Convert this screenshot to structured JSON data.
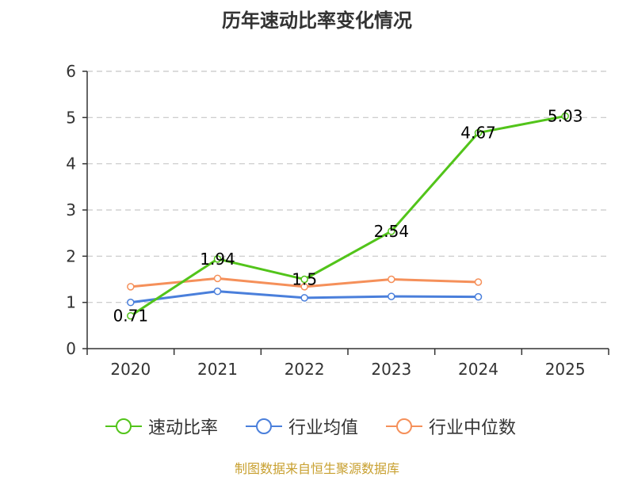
{
  "chart_data": {
    "type": "line",
    "title": "历年速动比率变化情况",
    "categories": [
      "2020",
      "2021",
      "2022",
      "2023",
      "2024",
      "2025"
    ],
    "ylim": [
      0,
      6
    ],
    "yticks": [
      "0",
      "1",
      "2",
      "3",
      "4",
      "5",
      "6"
    ],
    "grid": true,
    "legend_position": "bottom",
    "series": [
      {
        "name": "速动比率",
        "color": "#52c41a",
        "values": [
          0.71,
          1.94,
          1.5,
          2.54,
          4.67,
          5.03
        ],
        "labels": [
          "0.71",
          "1.94",
          "1.5",
          "2.54",
          "4.67",
          "5.03"
        ]
      },
      {
        "name": "行业均值",
        "color": "#4a7fdb",
        "values": [
          1.0,
          1.24,
          1.1,
          1.13,
          1.12,
          null
        ]
      },
      {
        "name": "行业中位数",
        "color": "#f5905a",
        "values": [
          1.34,
          1.52,
          1.34,
          1.5,
          1.44,
          null
        ]
      }
    ]
  },
  "source": "制图数据来自恒生聚源数据库"
}
